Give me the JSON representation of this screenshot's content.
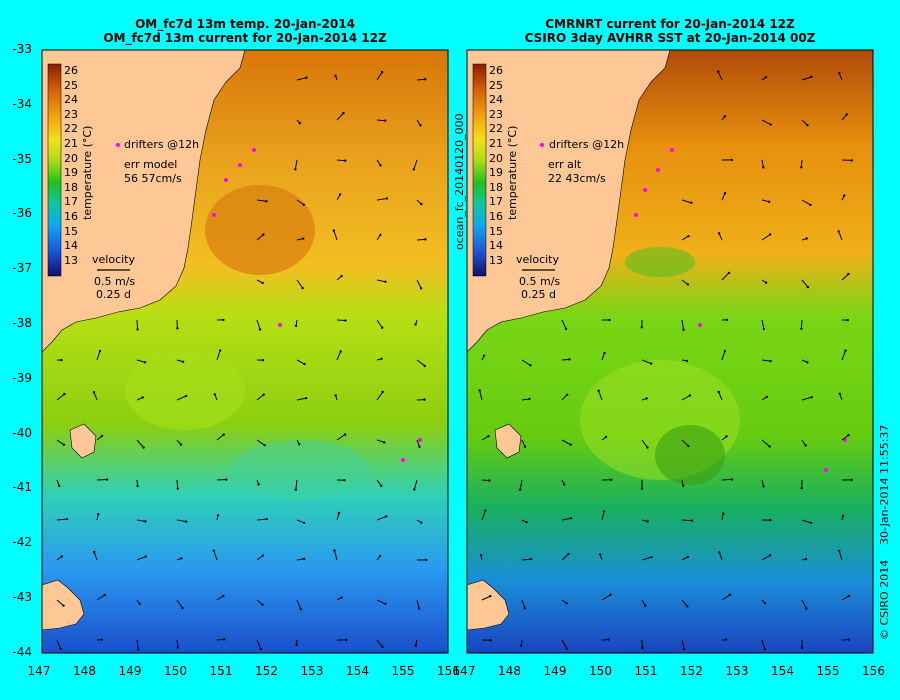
{
  "left_panel": {
    "title_line1": "OM_fc7d 13m temp. 20-Jan-2014",
    "title_line2": "OM_fc7d 13m current for 20-Jan-2014 12Z",
    "drifters_label": "drifters @12h",
    "err_label": "err model",
    "err_value": "56 57cm/s",
    "velocity_label": "velocity",
    "velocity_speed": "0.5 m/s",
    "velocity_time": "0.25 d",
    "cb_title": "temperature (°C)"
  },
  "right_panel": {
    "title_line1": "CMRNRT current for 20-Jan-2014 12Z",
    "title_line2": "CSIRO 3day AVHRR SST at 20-Jan-2014 00Z",
    "drifters_label": "drifters @12h",
    "err_label": "err alt",
    "err_value": "22 43cm/s",
    "velocity_label": "velocity",
    "velocity_speed": "0.5 m/s",
    "velocity_time": "0.25 d",
    "cb_title": "temperature (°C)"
  },
  "side_label": "ocean_fc_20140120_000",
  "timestamp": "30-Jan-2014 11:55:37",
  "copyright": "© CSIRO 2014",
  "colorbar_ticks": [
    "26",
    "25",
    "24",
    "23",
    "22",
    "21",
    "20",
    "19",
    "18",
    "17",
    "16",
    "15",
    "14",
    "13"
  ],
  "lat_ticks": [
    "-33",
    "-34",
    "-35",
    "-36",
    "-37",
    "-38",
    "-39",
    "-40",
    "-41",
    "-42",
    "-43",
    "-44"
  ],
  "lon_ticks": [
    "147",
    "148",
    "149",
    "150",
    "151",
    "152",
    "153",
    "154",
    "155",
    "156"
  ],
  "colors": {
    "background": "#00fffe",
    "land": "#fdc896",
    "warm": "#e08a10",
    "mid": "#9bd20a",
    "cool": "#2a8cf0",
    "drifter": "#ff00ff"
  }
}
